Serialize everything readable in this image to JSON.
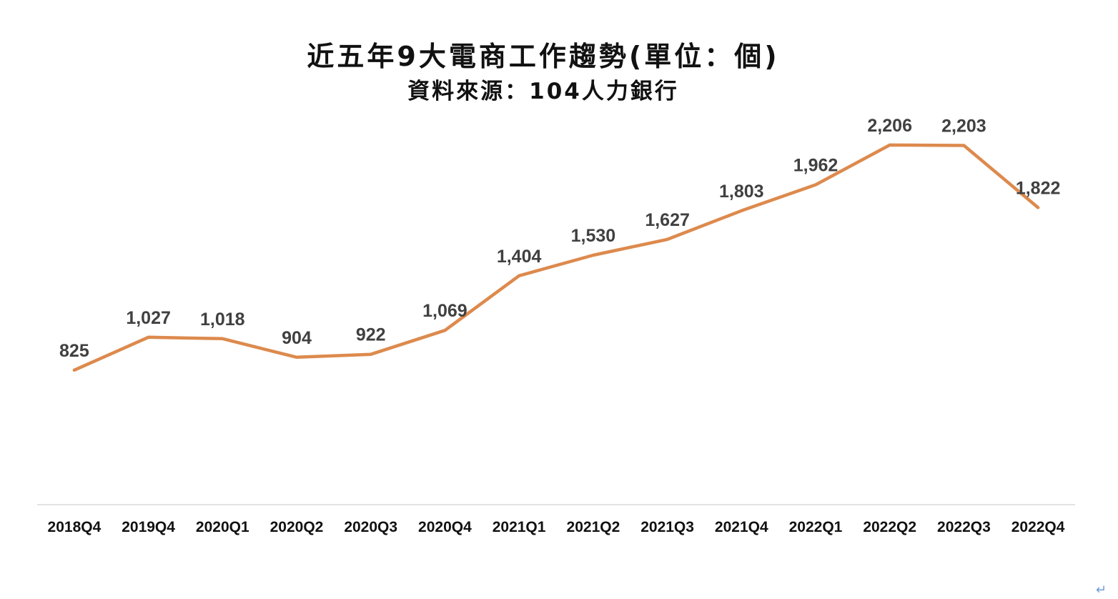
{
  "chart_data": {
    "type": "line",
    "title": "近五年9大電商工作趨勢(單位：個)",
    "subtitle": "資料來源：104人力銀行",
    "categories": [
      "2018Q4",
      "2019Q4",
      "2020Q1",
      "2020Q2",
      "2020Q3",
      "2020Q4",
      "2021Q1",
      "2021Q2",
      "2021Q3",
      "2021Q4",
      "2022Q1",
      "2022Q2",
      "2022Q3",
      "2022Q4"
    ],
    "values": [
      825,
      1027,
      1018,
      904,
      922,
      1069,
      1404,
      1530,
      1627,
      1803,
      1962,
      2206,
      2203,
      1822
    ],
    "value_labels": [
      "825",
      "1,027",
      "1,018",
      "904",
      "922",
      "1,069",
      "1,404",
      "1,530",
      "1,627",
      "1,803",
      "1,962",
      "2,206",
      "2,203",
      "1,822"
    ],
    "ylim": [
      0,
      2600
    ],
    "line_color": "#dd8a4d",
    "grid": false,
    "legend": "none"
  },
  "corner_mark": "↵"
}
